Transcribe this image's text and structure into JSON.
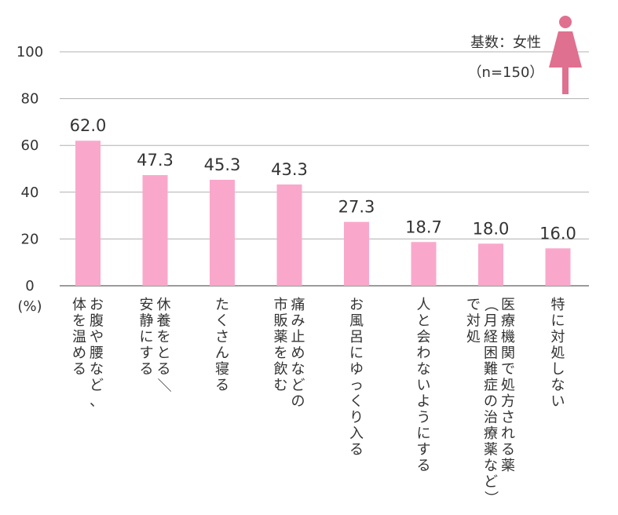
{
  "chart_data": {
    "type": "bar",
    "categories": [
      [
        "お腹や腰など、",
        "体を温める"
      ],
      [
        "休養をとる／",
        "安静にする"
      ],
      [
        "たくさん寝る"
      ],
      [
        "痛み止めなどの",
        "市販薬を飲む"
      ],
      [
        "お風呂にゆっくり入る"
      ],
      [
        "人と会わないようにする"
      ],
      [
        "医療機関で処方される薬",
        "（月経困難症の治療薬など）",
        "で対処"
      ],
      [
        "特に対処しない"
      ]
    ],
    "values": [
      62.0,
      47.3,
      45.3,
      43.3,
      27.3,
      18.7,
      18.0,
      16.0
    ],
    "value_labels": [
      "62.0",
      "47.3",
      "45.3",
      "43.3",
      "27.3",
      "18.7",
      "18.0",
      "16.0"
    ],
    "yticks": [
      "0",
      "20",
      "40",
      "60",
      "80",
      "100"
    ],
    "ylim": [
      0,
      100
    ],
    "unit_label": "(%)",
    "legend": {
      "base_label": "基数：女性",
      "n_label": "（n=150）"
    },
    "colors": {
      "bar": "#f9a8cb",
      "grid": "#b0b0b0",
      "axis": "#7a7a7a",
      "icon": "#e0708f"
    }
  }
}
